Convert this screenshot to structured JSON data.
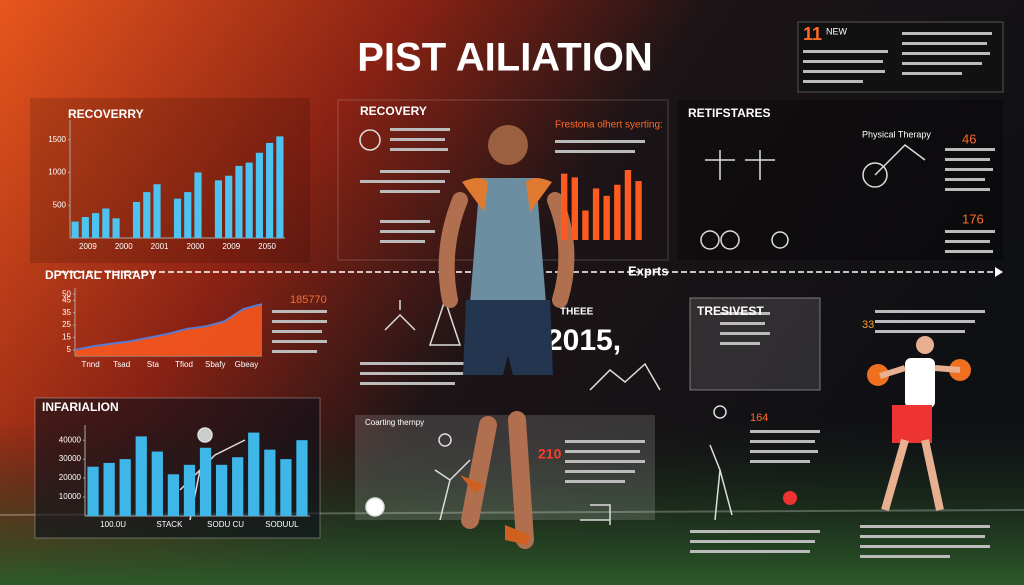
{
  "title": "PIST AILIATION",
  "top_note": {
    "number": "11",
    "tag": "NEW"
  },
  "axis_label": "Exprts",
  "recovery_chart": {
    "title": "RECOVERRY",
    "ylim": [
      0,
      1800
    ],
    "yticks": [
      1500,
      1000,
      500
    ],
    "xlabels": [
      "2009",
      "2000",
      "2001",
      "2000",
      "2009",
      "2050"
    ],
    "values": [
      250,
      320,
      380,
      450,
      300,
      0,
      550,
      700,
      820,
      0,
      600,
      700,
      1000,
      0,
      880,
      950,
      1100,
      1150,
      1300,
      1450,
      1550
    ],
    "color": "#4cc3f0"
  },
  "therapy_chart": {
    "title": "DPYICIAL THIRAPY",
    "ylim": [
      0,
      55
    ],
    "yticks": [
      50,
      45,
      35,
      25,
      15,
      5
    ],
    "values": [
      5,
      8,
      10,
      12,
      15,
      18,
      22,
      24,
      28,
      38,
      42
    ],
    "xlabels": [
      "Tnnd",
      "Tsad",
      "Sta",
      "Tfiod",
      "Sbafy",
      "Gbeay"
    ],
    "note": "185770",
    "color": "#ff5a1f"
  },
  "infarialion_chart": {
    "title": "INFARIALION",
    "ylim": [
      0,
      48000
    ],
    "yticks": [
      {
        "value": 40000,
        "label": "40000"
      },
      {
        "value": 30000,
        "label": "30000"
      },
      {
        "value": 20000,
        "label": "20000"
      },
      {
        "value": 10000,
        "label": "10000"
      }
    ],
    "xlabels": [
      "100.0U",
      "STACK",
      "SODU CU",
      "SODUUL"
    ],
    "values": [
      26000,
      28000,
      30000,
      42000,
      34000,
      22000,
      27000,
      36000,
      27000,
      31000,
      44000,
      35000,
      30000,
      40000
    ],
    "color": "#3fb6e8"
  },
  "middle_panel": {
    "title": "RECOVERY",
    "subtitle": "Frestona olhert syerting:",
    "values": [
      90,
      85,
      40,
      70,
      60,
      75,
      95,
      80
    ],
    "color": "#ff5a1f"
  },
  "right_panel": {
    "title": "RETIFSTARES",
    "sub": "Physical Therapy",
    "n1": "46",
    "n2": "176"
  },
  "lower_panel": {
    "title": "TRESIVEST",
    "n1": "164",
    "n2": "33",
    "caption": "Coarting thernpy"
  },
  "year": "2015,",
  "year_label": "THEEE",
  "small_number": "210"
}
